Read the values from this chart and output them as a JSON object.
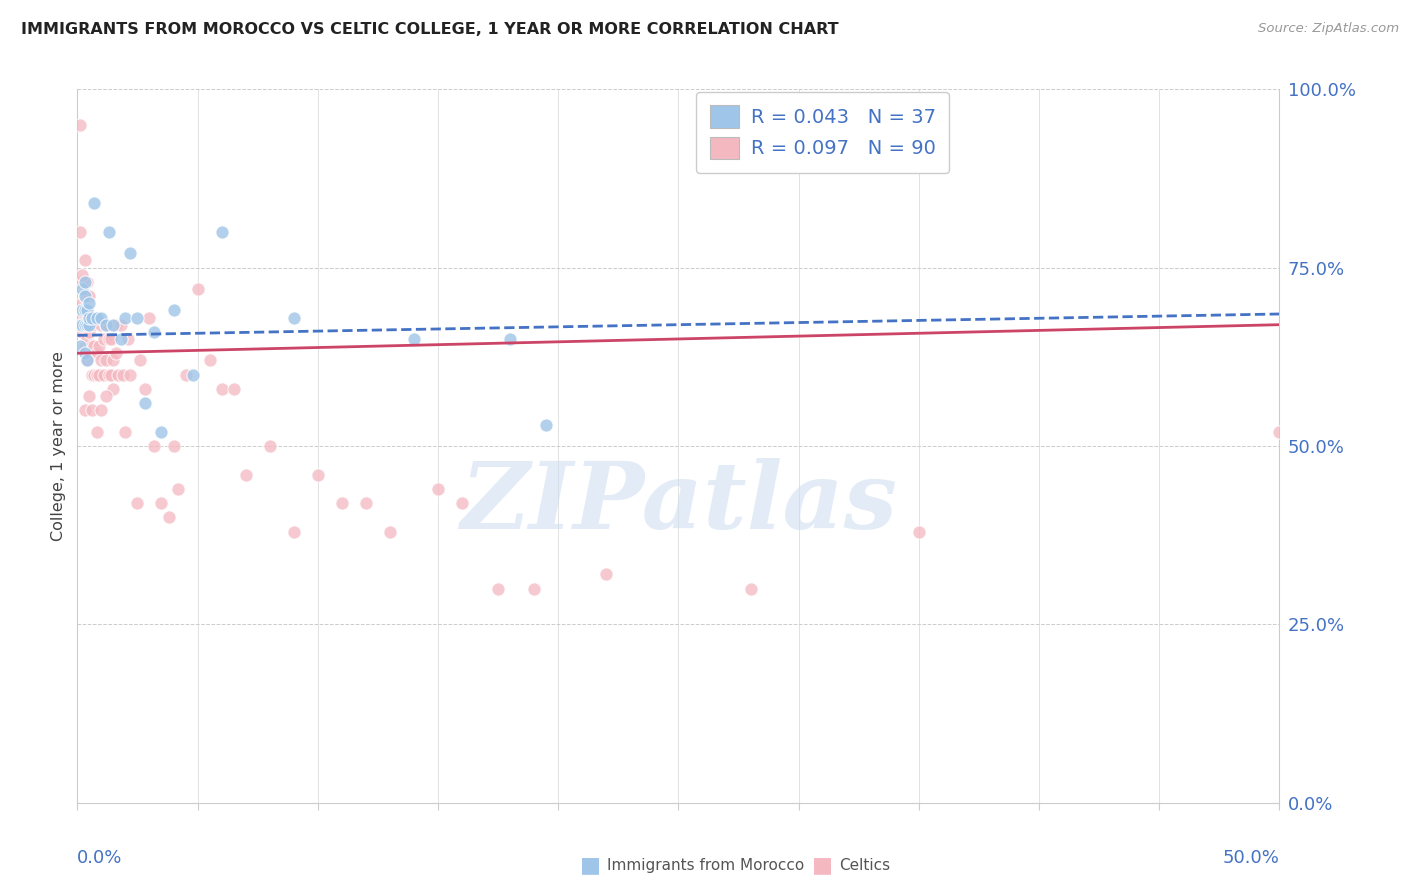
{
  "title": "IMMIGRANTS FROM MOROCCO VS CELTIC COLLEGE, 1 YEAR OR MORE CORRELATION CHART",
  "source": "Source: ZipAtlas.com",
  "ylabel": "College, 1 year or more",
  "legend_labels": [
    "Immigrants from Morocco",
    "Celtics"
  ],
  "r_blue": "R = 0.043",
  "n_blue": "N = 37",
  "r_pink": "R = 0.097",
  "n_pink": "N = 90",
  "watermark": "ZIPatlas",
  "blue_fill": "#9fc5e8",
  "pink_fill": "#f4b8c1",
  "blue_line": "#4472c4",
  "pink_line": "#cc4466",
  "accent_blue": "#4472c4",
  "title_color": "#222222",
  "grid_color": "#cccccc",
  "source_color": "#999999",
  "bg_color": "#ffffff",
  "x_min": 0.0,
  "x_max": 0.5,
  "y_min": 0.0,
  "y_max": 1.0,
  "ytick_vals": [
    0.0,
    0.25,
    0.5,
    0.75,
    1.0
  ],
  "ytick_labels": [
    "0.0%",
    "25.0%",
    "50.0%",
    "75.0%",
    "100.0%"
  ],
  "blue_x": [
    0.001,
    0.001,
    0.002,
    0.002,
    0.002,
    0.003,
    0.003,
    0.003,
    0.003,
    0.004,
    0.004,
    0.005,
    0.005,
    0.005,
    0.006,
    0.007,
    0.008,
    0.01,
    0.012,
    0.013,
    0.015,
    0.018,
    0.02,
    0.022,
    0.025,
    0.028,
    0.032,
    0.035,
    0.04,
    0.048,
    0.06,
    0.09,
    0.14,
    0.18,
    0.195,
    0.003,
    0.004
  ],
  "blue_y": [
    0.67,
    0.64,
    0.69,
    0.67,
    0.72,
    0.67,
    0.69,
    0.71,
    0.73,
    0.69,
    0.67,
    0.67,
    0.68,
    0.7,
    0.68,
    0.84,
    0.68,
    0.68,
    0.67,
    0.8,
    0.67,
    0.65,
    0.68,
    0.77,
    0.68,
    0.56,
    0.66,
    0.52,
    0.69,
    0.6,
    0.8,
    0.68,
    0.65,
    0.65,
    0.53,
    0.63,
    0.62
  ],
  "pink_x": [
    0.001,
    0.001,
    0.001,
    0.002,
    0.002,
    0.002,
    0.002,
    0.003,
    0.003,
    0.003,
    0.003,
    0.003,
    0.004,
    0.004,
    0.004,
    0.004,
    0.004,
    0.005,
    0.005,
    0.005,
    0.005,
    0.006,
    0.006,
    0.006,
    0.007,
    0.007,
    0.007,
    0.008,
    0.008,
    0.008,
    0.009,
    0.009,
    0.01,
    0.01,
    0.011,
    0.011,
    0.012,
    0.012,
    0.013,
    0.013,
    0.014,
    0.014,
    0.015,
    0.015,
    0.016,
    0.016,
    0.017,
    0.018,
    0.019,
    0.02,
    0.021,
    0.022,
    0.025,
    0.026,
    0.028,
    0.03,
    0.032,
    0.035,
    0.038,
    0.04,
    0.042,
    0.045,
    0.05,
    0.055,
    0.06,
    0.065,
    0.07,
    0.08,
    0.09,
    0.1,
    0.11,
    0.12,
    0.13,
    0.15,
    0.16,
    0.175,
    0.19,
    0.22,
    0.28,
    0.35,
    0.003,
    0.006,
    0.008,
    0.002,
    0.004,
    0.005,
    0.01,
    0.012,
    0.5,
    0.003
  ],
  "pink_y": [
    0.95,
    0.8,
    0.68,
    0.66,
    0.68,
    0.7,
    0.73,
    0.64,
    0.67,
    0.69,
    0.71,
    0.76,
    0.65,
    0.67,
    0.68,
    0.71,
    0.73,
    0.63,
    0.66,
    0.68,
    0.71,
    0.6,
    0.64,
    0.67,
    0.6,
    0.64,
    0.68,
    0.6,
    0.63,
    0.68,
    0.6,
    0.64,
    0.62,
    0.67,
    0.6,
    0.65,
    0.62,
    0.67,
    0.6,
    0.65,
    0.6,
    0.65,
    0.58,
    0.62,
    0.63,
    0.67,
    0.6,
    0.67,
    0.6,
    0.52,
    0.65,
    0.6,
    0.42,
    0.62,
    0.58,
    0.68,
    0.5,
    0.42,
    0.4,
    0.5,
    0.44,
    0.6,
    0.72,
    0.62,
    0.58,
    0.58,
    0.46,
    0.5,
    0.38,
    0.46,
    0.42,
    0.42,
    0.38,
    0.44,
    0.42,
    0.3,
    0.3,
    0.32,
    0.3,
    0.38,
    0.55,
    0.55,
    0.52,
    0.74,
    0.62,
    0.57,
    0.55,
    0.57,
    0.52,
    0.68
  ],
  "blue_trend_x0": 0.0,
  "blue_trend_x1": 0.5,
  "blue_trend_y0": 0.655,
  "blue_trend_y1": 0.685,
  "pink_trend_x0": 0.0,
  "pink_trend_x1": 0.5,
  "pink_trend_y0": 0.63,
  "pink_trend_y1": 0.67
}
